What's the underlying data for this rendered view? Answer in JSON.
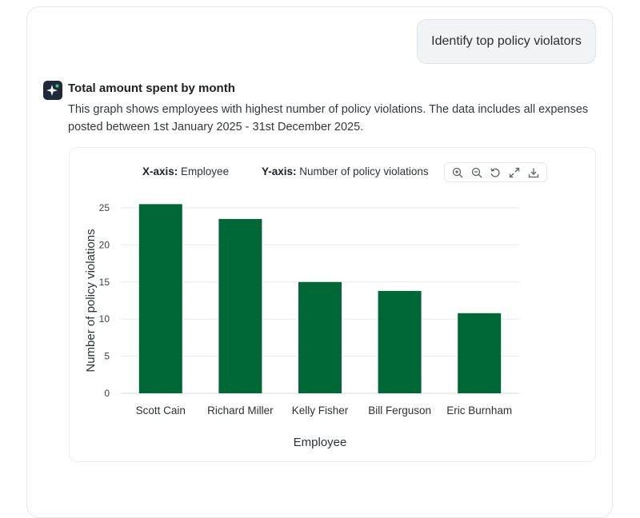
{
  "conversation": {
    "user_message": "Identify top policy violators",
    "answer": {
      "title": "Total amount spent by month",
      "description": "This graph shows employees with highest number of policy violations. The data includes all expenses posted between 1st January 2025 - 31st December 2025."
    }
  },
  "chart_panel": {
    "x_axis_key": "X-axis:",
    "x_axis_value": "Employee",
    "y_axis_key": "Y-axis:",
    "y_axis_value": "Number of policy violations",
    "toolbar": [
      "zoom-in-icon",
      "zoom-out-icon",
      "reset-icon",
      "expand-icon",
      "download-icon"
    ]
  },
  "colors": {
    "bar": "#006837",
    "avatar_bg": "#1f2a3a",
    "grid": "#e9ebed"
  },
  "chart_data": {
    "type": "bar",
    "categories": [
      "Scott Cain",
      "Richard Miller",
      "Kelly Fisher",
      "Bill Ferguson",
      "Eric Burnham"
    ],
    "values": [
      25.5,
      23.5,
      15,
      13.8,
      10.8
    ],
    "title": "",
    "xlabel": "Employee",
    "ylabel": "Number of policy violations",
    "ylim": [
      0,
      25
    ],
    "yticks": [
      0,
      5,
      10,
      15,
      20,
      25
    ],
    "grid": true,
    "legend": "none"
  }
}
